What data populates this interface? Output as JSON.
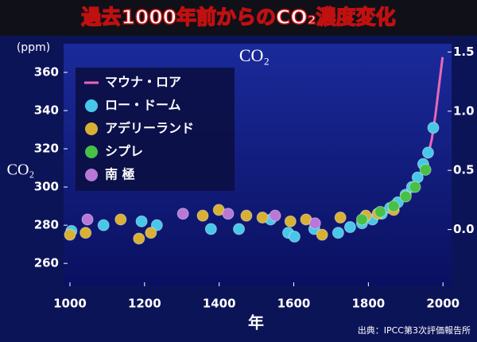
{
  "chart_data": {
    "type": "scatter",
    "title": "過去1000年前からのCO₂濃度変化",
    "subtitle": "CO₂",
    "y_label": "CO₂",
    "y_unit": "(ppm)",
    "x_label": "年",
    "source": "出典：IPCC第3次評価報告所",
    "xlim": [
      983,
      2023
    ],
    "xticks": [
      1000,
      1200,
      1400,
      1600,
      1800,
      2000
    ],
    "ylim": [
      248,
      375
    ],
    "yticks": [
      260,
      280,
      300,
      320,
      340,
      360
    ],
    "y2lim": [
      -0.48,
      1.57
    ],
    "y2ticks": [
      {
        "value": 0,
        "label": "0.0"
      },
      0.5,
      {
        "value": 1,
        "label": "1.0"
      },
      1.5
    ],
    "legend": "top-left",
    "series": [
      {
        "name": "マウナ・ロア",
        "color": "#e868b8",
        "style": "line",
        "x": [
          1958,
          1970,
          1980,
          1990,
          1999
        ],
        "values": [
          315,
          325,
          338,
          354,
          368
        ]
      },
      {
        "name": "ロー・ドーム",
        "color": "#48c8e8",
        "style": "marker",
        "x": [
          1004,
          1090,
          1192,
          1233,
          1378,
          1453,
          1538,
          1585,
          1602,
          1655,
          1719,
          1751,
          1783,
          1811,
          1836,
          1858,
          1879,
          1900,
          1917,
          1932,
          1947,
          1960,
          1974
        ],
        "values": [
          277,
          280,
          282,
          280,
          278,
          278,
          283,
          276,
          274,
          278,
          276,
          279,
          281,
          283,
          286,
          289,
          292,
          296,
          300,
          305,
          312,
          318,
          331
        ]
      },
      {
        "name": "アデリーランド",
        "color": "#d8b034",
        "style": "marker",
        "x": [
          1000,
          1042,
          1136,
          1185,
          1217,
          1356,
          1399,
          1473,
          1516,
          1591,
          1633,
          1676,
          1725,
          1793,
          1825,
          1868
        ],
        "values": [
          275,
          276,
          283,
          273,
          276,
          285,
          288,
          285,
          284,
          282,
          283,
          275,
          284,
          285,
          286,
          288
        ]
      },
      {
        "name": "シプレ",
        "color": "#48c048",
        "style": "marker",
        "x": [
          1783,
          1832,
          1868,
          1900,
          1925,
          1953
        ],
        "values": [
          283,
          287,
          290,
          295,
          300,
          309
        ]
      },
      {
        "name": "南 極",
        "color": "#b878d8",
        "style": "marker",
        "x": [
          1047,
          1303,
          1424,
          1550,
          1657
        ],
        "values": [
          283,
          286,
          286,
          285,
          281
        ]
      }
    ]
  }
}
